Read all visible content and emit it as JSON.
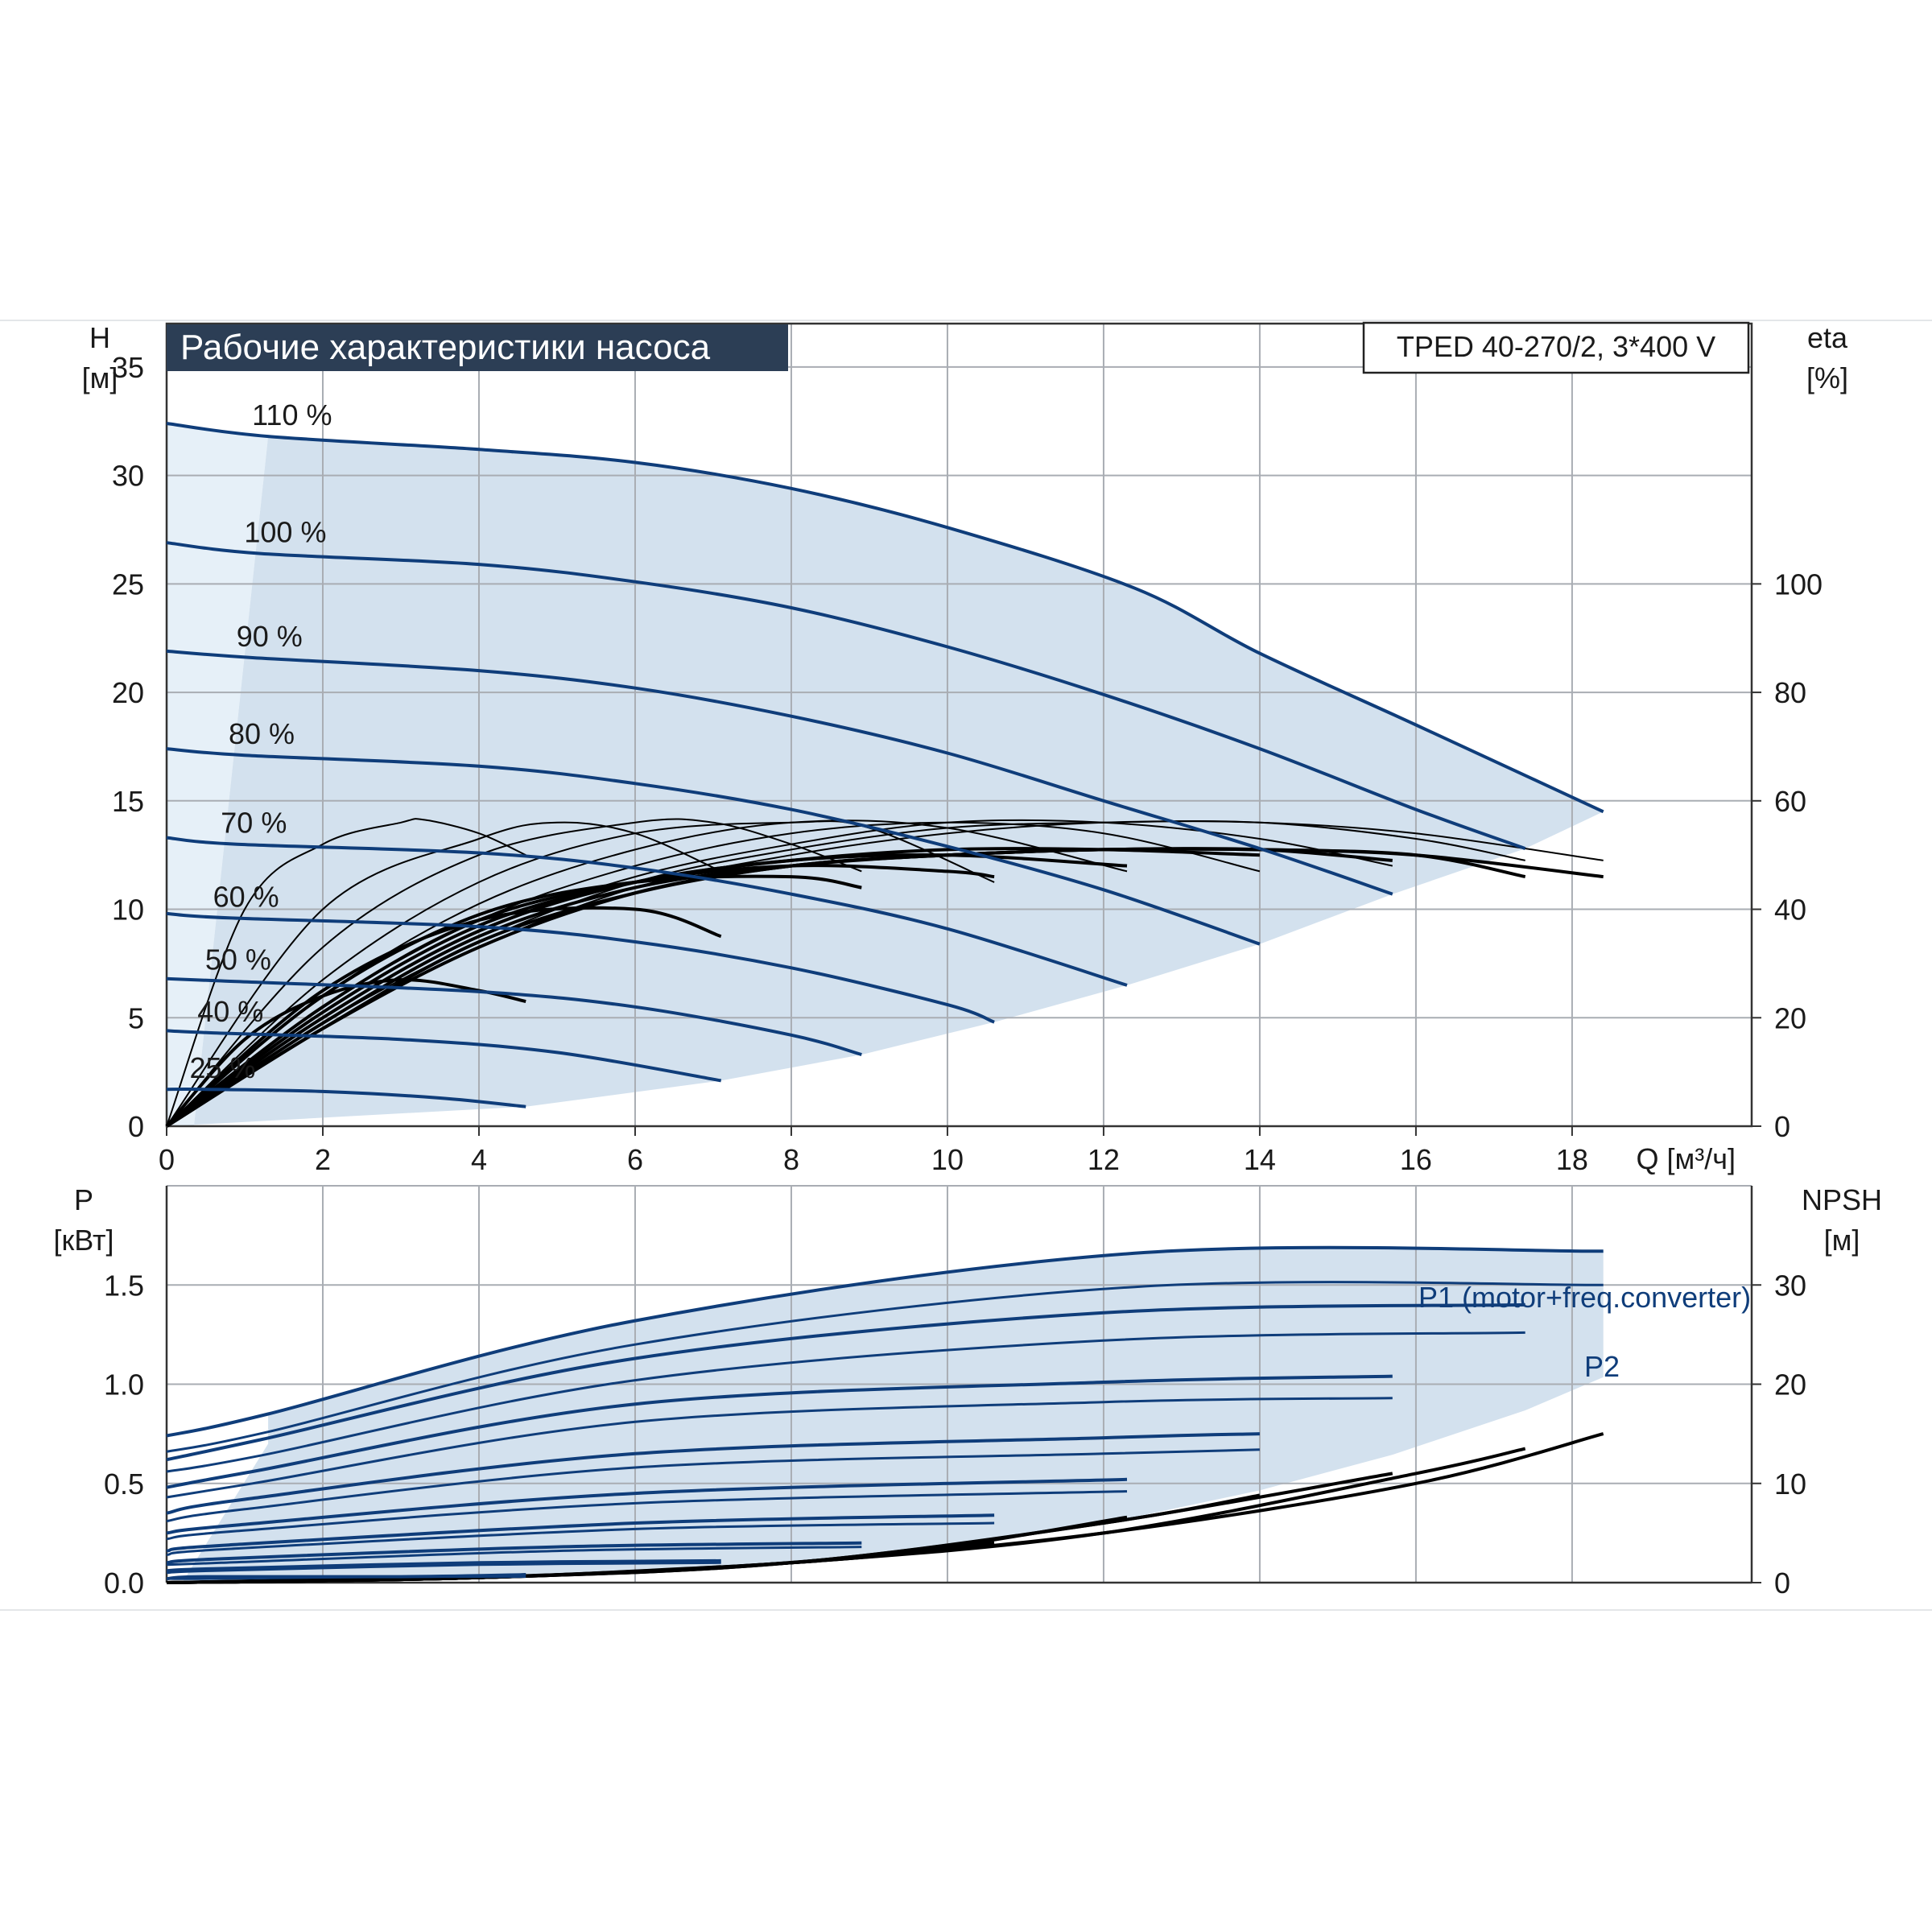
{
  "header": {
    "title": "Рабочие характеристики насоса",
    "model": "TPED 40-270/2, 3*400 V"
  },
  "colors": {
    "curve_blue": "#0f3d7a",
    "band_fill": "#d3e1ee",
    "band_fill_light": "#e6f0f8",
    "title_bg": "#2c3e55",
    "grid": "#a9adb3",
    "black": "#000000"
  },
  "chart_data": [
    {
      "type": "line",
      "name": "head",
      "ylabel_top": "H",
      "ylabel_unit": "[м]",
      "y2label_top": "eta",
      "y2label_unit": "[%]",
      "xlabel": "Q [м³/ч]",
      "xlim": [
        0,
        20.3
      ],
      "ylim": [
        0,
        37
      ],
      "x_ticks": [
        0,
        2,
        4,
        6,
        8,
        10,
        12,
        14,
        16,
        18
      ],
      "y_ticks": [
        0,
        5,
        10,
        15,
        20,
        25,
        30,
        35
      ],
      "y2_ticks": [
        0,
        20,
        40,
        60,
        80,
        100
      ],
      "y2lim": [
        0,
        148
      ],
      "grid": true,
      "series": [
        {
          "name": "110 %",
          "x": [
            0,
            1.3,
            4,
            6,
            8,
            10,
            12.4,
            14,
            16,
            18.4
          ],
          "y": [
            32.4,
            31.8,
            31.2,
            30.6,
            29.4,
            27.6,
            24.8,
            21.8,
            18.5,
            14.5
          ]
        },
        {
          "name": "100 %",
          "x": [
            0,
            1.2,
            4,
            6,
            8,
            10,
            12,
            14,
            16,
            17.4
          ],
          "y": [
            26.9,
            26.4,
            25.9,
            25.1,
            23.9,
            22.1,
            19.9,
            17.4,
            14.6,
            12.8
          ]
        },
        {
          "name": "90 %",
          "x": [
            0,
            1.1,
            4,
            6,
            8,
            10,
            12,
            14,
            15.7
          ],
          "y": [
            21.9,
            21.6,
            21.0,
            20.2,
            18.9,
            17.2,
            15.0,
            12.8,
            10.7
          ]
        },
        {
          "name": "80 %",
          "x": [
            0,
            1.0,
            4,
            6,
            8,
            10,
            12,
            14
          ],
          "y": [
            17.4,
            17.1,
            16.6,
            15.8,
            14.6,
            12.9,
            10.9,
            8.4
          ]
        },
        {
          "name": "70 %",
          "x": [
            0,
            0.9,
            4,
            6,
            8,
            10,
            12.3
          ],
          "y": [
            13.3,
            13.0,
            12.6,
            11.9,
            10.7,
            9.1,
            6.5
          ]
        },
        {
          "name": "60 %",
          "x": [
            0,
            0.8,
            4,
            6,
            8,
            10,
            10.6
          ],
          "y": [
            9.8,
            9.6,
            9.2,
            8.5,
            7.3,
            5.6,
            4.8
          ]
        },
        {
          "name": "50 %",
          "x": [
            0,
            0.7,
            4,
            6,
            8,
            8.9
          ],
          "y": [
            6.8,
            6.7,
            6.2,
            5.5,
            4.2,
            3.3
          ]
        },
        {
          "name": "40 %",
          "x": [
            0,
            0.6,
            3,
            5,
            7.1
          ],
          "y": [
            4.4,
            4.3,
            4.0,
            3.4,
            2.1
          ]
        },
        {
          "name": "25 %",
          "x": [
            0,
            0.5,
            2,
            3.5,
            4.6
          ],
          "y": [
            1.7,
            1.7,
            1.6,
            1.3,
            0.9
          ]
        }
      ],
      "efficiency_curves": [
        {
          "x": [
            0,
            1,
            2,
            3,
            3.3,
            4,
            4.6
          ],
          "y2": [
            0,
            40,
            52,
            56,
            56.5,
            54,
            50
          ]
        },
        {
          "x": [
            0,
            2,
            4,
            5,
            6,
            7.1
          ],
          "y2": [
            0,
            40,
            53,
            56,
            54,
            47
          ]
        },
        {
          "x": [
            0,
            2,
            4,
            6,
            7,
            8,
            8.9
          ],
          "y2": [
            0,
            33,
            50,
            56,
            56,
            52,
            47
          ]
        },
        {
          "x": [
            0,
            2,
            4,
            6,
            8,
            9,
            10.6
          ],
          "y2": [
            0,
            27,
            45,
            54,
            56,
            55,
            45
          ]
        },
        {
          "x": [
            0,
            2,
            4,
            6,
            8,
            10,
            12.3
          ],
          "y2": [
            0,
            24,
            41,
            51,
            56,
            55,
            47
          ]
        },
        {
          "x": [
            0,
            2,
            4,
            6,
            8,
            10,
            12,
            14
          ],
          "y2": [
            0,
            22,
            38,
            48,
            54,
            56,
            54,
            47
          ]
        },
        {
          "x": [
            0,
            2,
            4,
            6,
            8,
            10,
            12,
            14,
            15.7
          ],
          "y2": [
            0,
            20,
            36,
            46,
            52,
            56,
            56,
            53,
            48
          ]
        },
        {
          "x": [
            0,
            2,
            4,
            6,
            8,
            10,
            12,
            14,
            16,
            17.4
          ],
          "y2": [
            0,
            19,
            34,
            45,
            51,
            55,
            56,
            56,
            53,
            49
          ]
        },
        {
          "x": [
            0,
            2,
            4,
            6,
            8,
            10,
            12,
            14,
            16,
            18.4
          ],
          "y2": [
            0,
            18,
            33,
            44,
            50,
            54,
            56,
            56,
            54,
            49
          ]
        }
      ],
      "efficiency_curves_lower": [
        {
          "x": [
            0,
            1,
            2,
            3,
            4,
            4.6
          ],
          "y2": [
            0,
            16,
            24,
            27,
            25,
            23
          ]
        },
        {
          "x": [
            0,
            2,
            4,
            6,
            7.1
          ],
          "y2": [
            0,
            25,
            38,
            40,
            35
          ]
        },
        {
          "x": [
            0,
            2,
            4,
            6,
            8,
            8.9
          ],
          "y2": [
            0,
            24,
            39,
            45,
            46,
            44
          ]
        },
        {
          "x": [
            0,
            2,
            4,
            6,
            8,
            10,
            10.6
          ],
          "y2": [
            0,
            22,
            38,
            45,
            48,
            47,
            46
          ]
        },
        {
          "x": [
            0,
            2,
            4,
            6,
            8,
            10,
            12.3
          ],
          "y2": [
            0,
            21,
            37,
            45,
            49,
            50,
            48
          ]
        },
        {
          "x": [
            0,
            2,
            4,
            6,
            8,
            10,
            12,
            14
          ],
          "y2": [
            0,
            20,
            36,
            45,
            49,
            51,
            51,
            50
          ]
        },
        {
          "x": [
            0,
            2,
            4,
            6,
            8,
            10,
            12,
            14,
            15.7
          ],
          "y2": [
            0,
            19,
            35,
            44,
            48,
            50,
            51,
            51,
            49
          ]
        },
        {
          "x": [
            0,
            2,
            4,
            6,
            8,
            10,
            12,
            14,
            16,
            17.4
          ],
          "y2": [
            0,
            18,
            34,
            43,
            48,
            50,
            51,
            51,
            50,
            46
          ]
        },
        {
          "x": [
            0,
            2,
            4,
            6,
            8,
            10,
            12,
            14,
            16,
            18.4
          ],
          "y2": [
            0,
            18,
            33,
            43,
            48,
            50,
            51,
            51,
            50,
            46
          ]
        }
      ],
      "band": {
        "upper": "110 %",
        "lower_x": [
          0,
          4.6,
          7.1,
          8.9,
          10.6,
          12.3,
          14,
          15.7,
          17.4,
          18.4
        ],
        "lower_y": [
          0,
          0.9,
          2.1,
          3.3,
          4.8,
          6.5,
          8.4,
          10.7,
          12.8,
          14.5
        ]
      }
    },
    {
      "type": "line",
      "name": "power",
      "ylabel_top": "P",
      "ylabel_unit": "[кВт]",
      "y2label_top": "NPSH",
      "y2label_unit": "[м]",
      "xlim": [
        0,
        20.3
      ],
      "ylim": [
        0,
        2.0
      ],
      "y_ticks": [
        0.0,
        0.5,
        1.0,
        1.5
      ],
      "y_tick_labels": [
        "0.0",
        "0.5",
        "1.0",
        "1.5"
      ],
      "y2_ticks": [
        0,
        10,
        20,
        30
      ],
      "y2lim": [
        0,
        40
      ],
      "grid": true,
      "annotations": [
        "P1 (motor+freq.converter)",
        "P2"
      ],
      "series_p1": [
        {
          "x": [
            0,
            1.3,
            6,
            12.4,
            18.4
          ],
          "y": [
            0.74,
            0.85,
            1.32,
            1.66,
            1.67
          ]
        },
        {
          "x": [
            0,
            1.2,
            6,
            12,
            17.4
          ],
          "y": [
            0.62,
            0.72,
            1.13,
            1.36,
            1.4
          ]
        },
        {
          "x": [
            0,
            1.1,
            6,
            12,
            15.7
          ],
          "y": [
            0.48,
            0.56,
            0.9,
            1.01,
            1.04
          ]
        },
        {
          "x": [
            0,
            1.0,
            6,
            12,
            14
          ],
          "y": [
            0.35,
            0.42,
            0.65,
            0.73,
            0.75
          ]
        },
        {
          "x": [
            0,
            0.9,
            6,
            12.3
          ],
          "y": [
            0.25,
            0.29,
            0.45,
            0.52
          ]
        },
        {
          "x": [
            0,
            0.8,
            6,
            10.6
          ],
          "y": [
            0.16,
            0.19,
            0.3,
            0.34
          ]
        },
        {
          "x": [
            0,
            0.7,
            5,
            8.9
          ],
          "y": [
            0.1,
            0.12,
            0.18,
            0.2
          ]
        },
        {
          "x": [
            0,
            0.6,
            4,
            7.1
          ],
          "y": [
            0.06,
            0.07,
            0.1,
            0.11
          ]
        },
        {
          "x": [
            0,
            0.5,
            3,
            4.6
          ],
          "y": [
            0.02,
            0.03,
            0.03,
            0.04
          ]
        }
      ],
      "series_p2": [
        {
          "x": [
            0,
            1.3,
            6,
            12.4,
            18.4
          ],
          "y": [
            0.66,
            0.76,
            1.2,
            1.49,
            1.5
          ]
        },
        {
          "x": [
            0,
            1.2,
            6,
            12,
            17.4
          ],
          "y": [
            0.56,
            0.64,
            1.02,
            1.22,
            1.26
          ]
        },
        {
          "x": [
            0,
            1.1,
            6,
            12,
            15.7
          ],
          "y": [
            0.43,
            0.5,
            0.81,
            0.91,
            0.93
          ]
        },
        {
          "x": [
            0,
            1.0,
            6,
            12,
            14
          ],
          "y": [
            0.31,
            0.37,
            0.58,
            0.65,
            0.67
          ]
        },
        {
          "x": [
            0,
            0.9,
            6,
            12.3
          ],
          "y": [
            0.22,
            0.26,
            0.4,
            0.46
          ]
        },
        {
          "x": [
            0,
            0.8,
            6,
            10.6
          ],
          "y": [
            0.14,
            0.17,
            0.27,
            0.3
          ]
        },
        {
          "x": [
            0,
            0.7,
            5,
            8.9
          ],
          "y": [
            0.09,
            0.1,
            0.16,
            0.18
          ]
        },
        {
          "x": [
            0,
            0.6,
            4,
            7.1
          ],
          "y": [
            0.05,
            0.06,
            0.09,
            0.1
          ]
        },
        {
          "x": [
            0,
            0.5,
            3,
            4.6
          ],
          "y": [
            0.02,
            0.02,
            0.03,
            0.03
          ]
        }
      ],
      "series_npsh": [
        {
          "x": [
            0,
            4,
            8,
            12,
            16,
            18.4
          ],
          "y2": [
            0,
            0.5,
            2.0,
            5.0,
            10.0,
            15.0
          ]
        },
        {
          "x": [
            0,
            4,
            8,
            12,
            16,
            17.4
          ],
          "y2": [
            0,
            0.5,
            2.0,
            5.0,
            11.0,
            13.5
          ]
        },
        {
          "x": [
            0,
            4,
            8,
            12,
            15.7
          ],
          "y2": [
            0,
            0.5,
            2.0,
            6.0,
            11.0
          ]
        },
        {
          "x": [
            0,
            4,
            8,
            12,
            14
          ],
          "y2": [
            0,
            0.5,
            2.0,
            6.0,
            8.8
          ]
        },
        {
          "x": [
            0,
            4,
            8,
            10,
            12.3
          ],
          "y2": [
            0,
            0.5,
            2.0,
            3.6,
            6.6
          ]
        },
        {
          "x": [
            0,
            4,
            8,
            10.6
          ],
          "y2": [
            0,
            0.5,
            2.0,
            4.0
          ]
        },
        {
          "x": [
            0,
            4,
            7,
            8.9
          ],
          "y2": [
            0,
            0.5,
            1.5,
            2.6
          ]
        },
        {
          "x": [
            0,
            3,
            5,
            7.1
          ],
          "y2": [
            0,
            0.4,
            0.8,
            1.6
          ]
        },
        {
          "x": [
            0,
            2,
            4,
            4.6
          ],
          "y2": [
            0,
            0.3,
            0.6,
            0.8
          ]
        }
      ]
    }
  ]
}
